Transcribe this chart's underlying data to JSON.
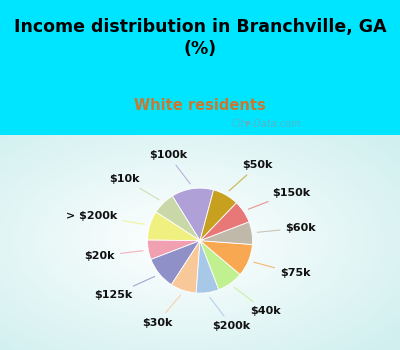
{
  "title": "Income distribution in Branchville, GA\n(%)",
  "subtitle": "White residents",
  "title_color": "#000000",
  "subtitle_color": "#c87830",
  "bg_color_outer": "#00e5ff",
  "labels": [
    "$100k",
    "$10k",
    "> $200k",
    "$20k",
    "$125k",
    "$30k",
    "$200k",
    "$40k",
    "$75k",
    "$60k",
    "$150k",
    "$50k"
  ],
  "values": [
    13,
    7,
    9,
    6,
    10,
    8,
    7,
    8,
    10,
    7,
    7,
    8
  ],
  "colors": [
    "#b0a0d8",
    "#c8d8a8",
    "#f0f080",
    "#f0a0b0",
    "#9090c8",
    "#f8c898",
    "#a8c8e8",
    "#c0f090",
    "#f8a850",
    "#c0b8a8",
    "#e87878",
    "#c8a020"
  ],
  "label_fontsize": 8,
  "watermark": "City-Data.com",
  "startangle": 75
}
